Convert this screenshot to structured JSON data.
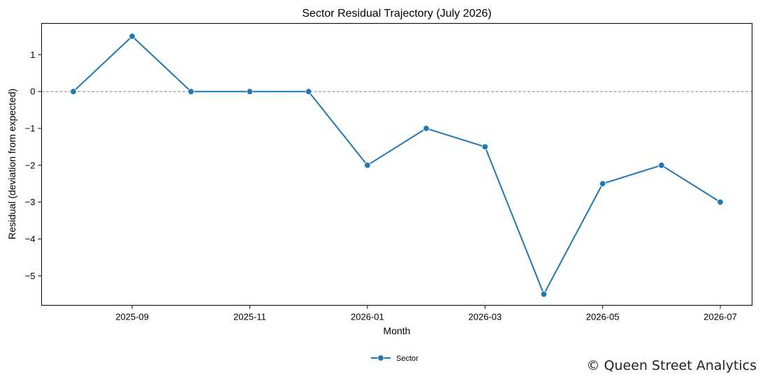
{
  "chart_data": {
    "type": "line",
    "title": "Sector Residual Trajectory (July 2026)",
    "xlabel": "Month",
    "ylabel": "Residual (deviation from expected)",
    "x": [
      "2025-08",
      "2025-09",
      "2025-10",
      "2025-11",
      "2025-12",
      "2026-01",
      "2026-02",
      "2026-03",
      "2026-04",
      "2026-05",
      "2026-06",
      "2026-07"
    ],
    "x_ticks": [
      "2025-09",
      "2025-11",
      "2026-01",
      "2026-03",
      "2026-05",
      "2026-07"
    ],
    "y_ticks": [
      1,
      0,
      -1,
      -2,
      -3,
      -4,
      -5
    ],
    "y_tick_labels": [
      "1",
      "0",
      "−1",
      "−2",
      "−3",
      "−4",
      "−5"
    ],
    "ylim": [
      -5.8,
      1.85
    ],
    "reference_line": {
      "y": 0,
      "style": "dashed",
      "color": "#808080"
    },
    "series": [
      {
        "name": "Sector",
        "color": "#1f77b4",
        "marker": "circle",
        "values": [
          0,
          1.5,
          0,
          0,
          0,
          -2,
          -1,
          -1.5,
          -5.5,
          -2.5,
          -2,
          -3
        ]
      }
    ],
    "legend": {
      "placement": "bottom-center",
      "entries": [
        "Sector"
      ]
    },
    "grid": false
  },
  "credit": "© Queen Street Analytics"
}
